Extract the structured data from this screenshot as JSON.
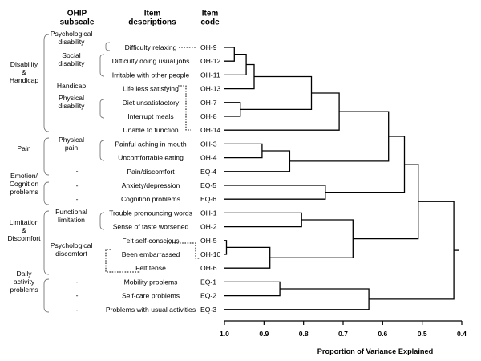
{
  "headers": {
    "subscale": "OHIP\nsubscale",
    "descriptions": "Item\ndescriptions",
    "code": "Item\ncode"
  },
  "domains": [
    {
      "label": "Disability\n&\nHandicap"
    },
    {
      "label": "Pain"
    },
    {
      "label": "Emotion/\nCognition\nproblems"
    },
    {
      "label": "Limitation\n&\nDiscomfort"
    },
    {
      "label": "Daily\nactivity\nproblems"
    }
  ],
  "subscales": [
    {
      "label": "Psychological\ndisability"
    },
    {
      "label": "Social\ndisability"
    },
    {
      "label": "Handicap"
    },
    {
      "label": "Physical\ndisability"
    },
    {
      "label": "Physical\npain"
    },
    {
      "label": "-"
    },
    {
      "label": "-"
    },
    {
      "label": "-"
    },
    {
      "label": "Functional\nlimitation"
    },
    {
      "label": "Psychological\ndiscomfort"
    },
    {
      "label": "-"
    },
    {
      "label": "-"
    },
    {
      "label": "-"
    }
  ],
  "items": [
    {
      "desc": "Difficulty relaxing",
      "code": "OH-9"
    },
    {
      "desc": "Difficulty doing usual jobs",
      "code": "OH-12"
    },
    {
      "desc": "Irritable with other people",
      "code": "OH-11"
    },
    {
      "desc": "Life less satisfying",
      "code": "OH-13"
    },
    {
      "desc": "Diet unsatisfactory",
      "code": "OH-7"
    },
    {
      "desc": "Interrupt meals",
      "code": "OH-8"
    },
    {
      "desc": "Unable to function",
      "code": "OH-14"
    },
    {
      "desc": "Painful aching in mouth",
      "code": "OH-3"
    },
    {
      "desc": "Uncomfortable eating",
      "code": "OH-4"
    },
    {
      "desc": "Pain/discomfort",
      "code": "EQ-4"
    },
    {
      "desc": "Anxiety/depression",
      "code": "EQ-5"
    },
    {
      "desc": "Cognition problems",
      "code": "EQ-6"
    },
    {
      "desc": "Trouble pronouncing words",
      "code": "OH-1"
    },
    {
      "desc": "Sense of taste worsened",
      "code": "OH-2"
    },
    {
      "desc": "Felt self-conscious",
      "code": "OH-5"
    },
    {
      "desc": "Been embarrassed",
      "code": "OH-10"
    },
    {
      "desc": "Felt tense",
      "code": "OH-6"
    },
    {
      "desc": "Mobility problems",
      "code": "EQ-1"
    },
    {
      "desc": "Self-care problems",
      "code": "EQ-2"
    },
    {
      "desc": "Problems with usual activities",
      "code": "EQ-3"
    }
  ],
  "axis": {
    "ticks": [
      1.0,
      0.9,
      0.8,
      0.7,
      0.6,
      0.5,
      0.4
    ],
    "tick_labels": [
      "1.0",
      "0.9",
      "0.8",
      "0.7",
      "0.6",
      "0.5",
      "0.4"
    ],
    "label": "Proportion of Variance Explained",
    "range": [
      1.0,
      0.4
    ]
  },
  "dendrogram": {
    "merges": [
      {
        "id": "m1",
        "a": "i0",
        "b": "i1",
        "height": 0.975
      },
      {
        "id": "m2",
        "a": "m1",
        "b": "i2",
        "height": 0.945
      },
      {
        "id": "m3",
        "a": "m2",
        "b": "i3",
        "height": 0.925
      },
      {
        "id": "m4",
        "a": "i4",
        "b": "i5",
        "height": 0.96
      },
      {
        "id": "m5",
        "a": "m3",
        "b": "m4",
        "height": 0.78
      },
      {
        "id": "m6",
        "a": "m5",
        "b": "i6",
        "height": 0.71
      },
      {
        "id": "m7",
        "a": "i7",
        "b": "i8",
        "height": 0.905
      },
      {
        "id": "m8",
        "a": "m7",
        "b": "i9",
        "height": 0.835
      },
      {
        "id": "m9",
        "a": "m6",
        "b": "m8",
        "height": 0.585
      },
      {
        "id": "m10",
        "a": "i10",
        "b": "i11",
        "height": 0.745
      },
      {
        "id": "m11",
        "a": "m9",
        "b": "m10",
        "height": 0.545
      },
      {
        "id": "m12",
        "a": "i14",
        "b": "i15",
        "height": 0.995
      },
      {
        "id": "m13",
        "a": "i12",
        "b": "i13",
        "height": 0.805
      },
      {
        "id": "m14",
        "a": "m12",
        "b": "i16",
        "height": 0.885
      },
      {
        "id": "m15",
        "a": "m13",
        "b": "m14",
        "height": 0.675
      },
      {
        "id": "m16",
        "a": "m11",
        "b": "m15",
        "height": 0.51
      },
      {
        "id": "m17",
        "a": "i17",
        "b": "i18",
        "height": 0.86
      },
      {
        "id": "m18",
        "a": "m17",
        "b": "i19",
        "height": 0.635
      },
      {
        "id": "m19",
        "a": "m16",
        "b": "m18",
        "height": 0.42
      }
    ]
  }
}
